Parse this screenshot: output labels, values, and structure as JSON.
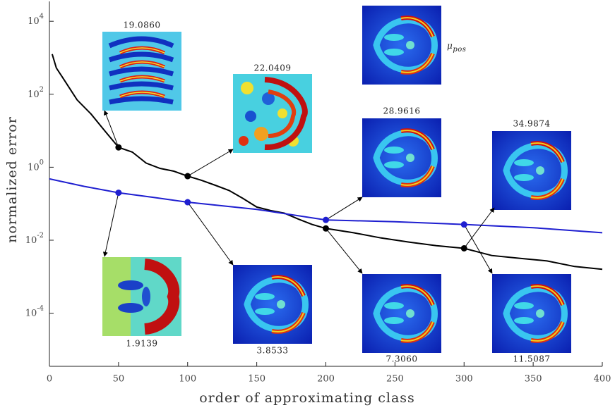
{
  "chart_data": {
    "type": "line",
    "x_label": "order of approximating class",
    "y_label": "normalized error",
    "log_y": true,
    "xlim": [
      0,
      400
    ],
    "xticks": [
      0,
      50,
      100,
      150,
      200,
      250,
      300,
      350,
      400
    ],
    "ylim": [
      3.5e-06,
      35000
    ],
    "yticks": [
      {
        "value": 10000,
        "label": "10^4"
      },
      {
        "value": 100,
        "label": "10^2"
      },
      {
        "value": 1,
        "label": "10^0"
      },
      {
        "value": 0.01,
        "label": "10^-2"
      },
      {
        "value": 0.0001,
        "label": "10^-4"
      }
    ],
    "series": [
      {
        "color": "#000000",
        "x": [
          2,
          5,
          10,
          20,
          30,
          40,
          50,
          60,
          70,
          80,
          90,
          100,
          110,
          120,
          130,
          140,
          150,
          160,
          170,
          180,
          190,
          200,
          220,
          240,
          260,
          280,
          300,
          320,
          340,
          360,
          380,
          400
        ],
        "values": [
          1260,
          525,
          270,
          70,
          29,
          10,
          3.5,
          2.6,
          1.3,
          0.93,
          0.78,
          0.57,
          0.44,
          0.32,
          0.23,
          0.14,
          0.081,
          0.065,
          0.055,
          0.038,
          0.027,
          0.021,
          0.016,
          0.0115,
          0.0089,
          0.0071,
          0.006,
          0.0038,
          0.0032,
          0.0027,
          0.0019,
          0.0016
        ]
      },
      {
        "color": "#1f1fd0",
        "x": [
          0,
          25,
          50,
          75,
          100,
          150,
          200,
          250,
          300,
          350,
          400
        ],
        "values": [
          0.48,
          0.3,
          0.2,
          0.15,
          0.11,
          0.07,
          0.036,
          0.032,
          0.027,
          0.022,
          0.016
        ]
      }
    ],
    "annotations": [
      {
        "text": "19.0860",
        "x": 50
      },
      {
        "text": "22.0409",
        "x": 100
      },
      {
        "text": "μ_pos"
      },
      {
        "text": "28.9616",
        "x": 200
      },
      {
        "text": "34.9874",
        "x": 300
      },
      {
        "text": "1.9139",
        "x": 50
      },
      {
        "text": "3.8533",
        "x": 100
      },
      {
        "text": "7.3060",
        "x": 200
      },
      {
        "text": "11.5087",
        "x": 300
      }
    ]
  }
}
